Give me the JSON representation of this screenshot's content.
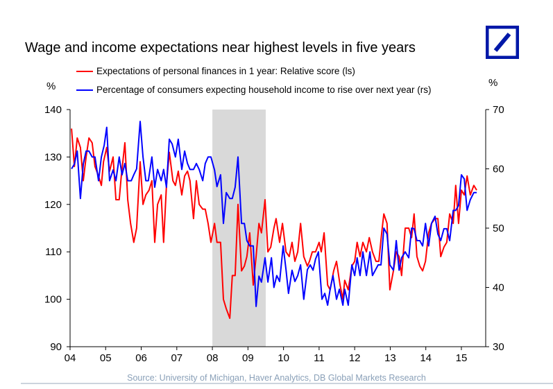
{
  "title": "Wage and income expectations near highest levels in five years",
  "source": "Source: University of Michigan, Haver Analytics, DB Global Markets Research",
  "logo": {
    "name": "Deutsche Bank logo",
    "color": "#0018a8"
  },
  "units": {
    "left": "%",
    "right": "%"
  },
  "chart_data": {
    "type": "line",
    "title": "Wage and income expectations near highest levels in five years",
    "x_tick_labels": [
      "04",
      "05",
      "06",
      "07",
      "08",
      "09",
      "10",
      "11",
      "12",
      "13",
      "14",
      "15"
    ],
    "x_ticks": [
      2004,
      2005,
      2006,
      2007,
      2008,
      2009,
      2010,
      2011,
      2012,
      2013,
      2014,
      2015
    ],
    "xlim": [
      2004,
      2015.6
    ],
    "ylim_left": [
      90,
      140
    ],
    "ylim_right": [
      30,
      70
    ],
    "y_ticks_left": [
      90,
      100,
      110,
      120,
      130,
      140
    ],
    "y_ticks_right": [
      30,
      40,
      50,
      60,
      70
    ],
    "ylabel_left": "%",
    "ylabel_right": "%",
    "grid": false,
    "legend_placement": "top-left",
    "shaded_regions": [
      {
        "from": 2008.0,
        "to": 2009.5,
        "color": "#d9d9d9"
      }
    ],
    "series": [
      {
        "name": "Expectations of personal finances in 1 year: Relative score (ls)",
        "axis": "left",
        "color": "#ff0000",
        "x": [
          2004.04,
          2004.12,
          2004.2,
          2004.29,
          2004.37,
          2004.45,
          2004.53,
          2004.62,
          2004.7,
          2004.8,
          2004.88,
          2004.94,
          2005.03,
          2005.11,
          2005.21,
          2005.29,
          2005.38,
          2005.44,
          2005.54,
          2005.62,
          2005.7,
          2005.79,
          2005.87,
          2005.97,
          2006.05,
          2006.13,
          2006.22,
          2006.3,
          2006.38,
          2006.46,
          2006.56,
          2006.63,
          2006.71,
          2006.79,
          2006.89,
          2006.96,
          2007.04,
          2007.14,
          2007.22,
          2007.3,
          2007.37,
          2007.47,
          2007.55,
          2007.63,
          2007.73,
          2007.8,
          2007.88,
          2007.96,
          2008.06,
          2008.13,
          2008.23,
          2008.31,
          2008.39,
          2008.49,
          2008.56,
          2008.64,
          2008.72,
          2008.82,
          2008.9,
          2008.97,
          2009.05,
          2009.15,
          2009.23,
          2009.31,
          2009.38,
          2009.48,
          2009.56,
          2009.64,
          2009.73,
          2009.79,
          2009.89,
          2009.97,
          2010.07,
          2010.16,
          2010.24,
          2010.32,
          2010.4,
          2010.48,
          2010.57,
          2010.67,
          2010.73,
          2010.81,
          2010.9,
          2011.0,
          2011.06,
          2011.14,
          2011.24,
          2011.31,
          2011.41,
          2011.49,
          2011.59,
          2011.67,
          2011.72,
          2011.82,
          2011.92,
          2012.0,
          2012.07,
          2012.15,
          2012.23,
          2012.33,
          2012.41,
          2012.5,
          2012.6,
          2012.68,
          2012.76,
          2012.82,
          2012.91,
          2012.99,
          2013.09,
          2013.17,
          2013.25,
          2013.32,
          2013.42,
          2013.52,
          2013.6,
          2013.67,
          2013.75,
          2013.83,
          2013.91,
          2013.99,
          2014.08,
          2014.16,
          2014.26,
          2014.34,
          2014.42,
          2014.51,
          2014.59,
          2014.67,
          2014.77,
          2014.84,
          2014.92,
          2015.0,
          2015.08,
          2015.16,
          2015.25,
          2015.35,
          2015.43
        ],
        "values": [
          136,
          128,
          134,
          132,
          125,
          130,
          134,
          133,
          128,
          126,
          124,
          129,
          132,
          127,
          130,
          121,
          121,
          126,
          133,
          121,
          116,
          112,
          115,
          129,
          120,
          122,
          123,
          125,
          112,
          120,
          122,
          112,
          124,
          131,
          125,
          124,
          127,
          122,
          126,
          127,
          125,
          117,
          125,
          120,
          119,
          119,
          116,
          112,
          116,
          112,
          112,
          100,
          98,
          96,
          105,
          105,
          120,
          106,
          107,
          109,
          114,
          103,
          109,
          116,
          114,
          121,
          110,
          111,
          115,
          117,
          112,
          116,
          110,
          109,
          112,
          108,
          110,
          116,
          109,
          107,
          108,
          110,
          110,
          112,
          110,
          114,
          103,
          102,
          106,
          108,
          103,
          100,
          104,
          102,
          107,
          108,
          112,
          109,
          112,
          110,
          113,
          110,
          108,
          108,
          114,
          118,
          116,
          102,
          106,
          110,
          109,
          105,
          115,
          115,
          113,
          118,
          109,
          107,
          106,
          108,
          114,
          116,
          117,
          117,
          109,
          111,
          112,
          118,
          116,
          124,
          116,
          123,
          122,
          126,
          122,
          124,
          123
        ]
      },
      {
        "name": "Percentage of consumers expecting household income to rise over next year (rs)",
        "axis": "right",
        "color": "#0000ff",
        "x": [
          2004.04,
          2004.12,
          2004.2,
          2004.29,
          2004.37,
          2004.45,
          2004.53,
          2004.62,
          2004.7,
          2004.8,
          2004.88,
          2004.96,
          2005.03,
          2005.11,
          2005.21,
          2005.29,
          2005.38,
          2005.46,
          2005.54,
          2005.62,
          2005.72,
          2005.79,
          2005.87,
          2005.97,
          2006.05,
          2006.13,
          2006.2,
          2006.3,
          2006.38,
          2006.46,
          2006.56,
          2006.63,
          2006.71,
          2006.79,
          2006.87,
          2006.96,
          2007.04,
          2007.14,
          2007.22,
          2007.3,
          2007.37,
          2007.47,
          2007.55,
          2007.63,
          2007.73,
          2007.8,
          2007.88,
          2007.96,
          2008.06,
          2008.13,
          2008.23,
          2008.31,
          2008.39,
          2008.49,
          2008.56,
          2008.64,
          2008.72,
          2008.82,
          2008.9,
          2008.97,
          2009.05,
          2009.15,
          2009.23,
          2009.31,
          2009.38,
          2009.48,
          2009.56,
          2009.66,
          2009.73,
          2009.81,
          2009.89,
          2009.99,
          2010.07,
          2010.14,
          2010.24,
          2010.32,
          2010.4,
          2010.48,
          2010.57,
          2010.67,
          2010.75,
          2010.83,
          2010.9,
          2010.98,
          2011.08,
          2011.16,
          2011.24,
          2011.31,
          2011.39,
          2011.49,
          2011.57,
          2011.67,
          2011.72,
          2011.82,
          2011.92,
          2012.0,
          2012.07,
          2012.15,
          2012.23,
          2012.33,
          2012.43,
          2012.5,
          2012.58,
          2012.66,
          2012.74,
          2012.82,
          2012.91,
          2012.99,
          2013.09,
          2013.17,
          2013.25,
          2013.32,
          2013.42,
          2013.52,
          2013.6,
          2013.67,
          2013.75,
          2013.83,
          2013.91,
          2013.99,
          2014.08,
          2014.16,
          2014.26,
          2014.34,
          2014.42,
          2014.51,
          2014.59,
          2014.67,
          2014.77,
          2014.84,
          2014.92,
          2015.0,
          2015.08,
          2015.16,
          2015.25,
          2015.35,
          2015.43
        ],
        "values": [
          60,
          60.8,
          63,
          55,
          60.8,
          63,
          63,
          62,
          62,
          58,
          62,
          64,
          67,
          58,
          59.8,
          58,
          62,
          59,
          60.9,
          58,
          58,
          59,
          60,
          68,
          62,
          58,
          58,
          62,
          56.9,
          59.9,
          58,
          59.9,
          56.9,
          65,
          64.2,
          62,
          65,
          59.9,
          63,
          60.9,
          59.9,
          59.9,
          60.9,
          59.9,
          58,
          60.9,
          62,
          62,
          59.8,
          57,
          59,
          50.8,
          56,
          55,
          55,
          56.9,
          62,
          50.8,
          50.8,
          47.9,
          47,
          47,
          36.8,
          41.9,
          40.9,
          45,
          40.9,
          45,
          40,
          42,
          41,
          47,
          43,
          39,
          42.9,
          41,
          42,
          43.8,
          38,
          43,
          43.8,
          42.9,
          44.8,
          46,
          38,
          39,
          37,
          39.7,
          42,
          38,
          39.7,
          37,
          39.7,
          37,
          43.8,
          42,
          45,
          42,
          46,
          42,
          46,
          42,
          42.9,
          43.8,
          43.8,
          50,
          49,
          43.8,
          42.9,
          47.9,
          42.9,
          45,
          46,
          45,
          50,
          49.9,
          47.9,
          47.9,
          47,
          50.8,
          47,
          50.8,
          52,
          49,
          47.9,
          49.9,
          49.9,
          47.9,
          53,
          53,
          53.8,
          59,
          58.3,
          53,
          54.8,
          56,
          56
        ]
      }
    ]
  }
}
